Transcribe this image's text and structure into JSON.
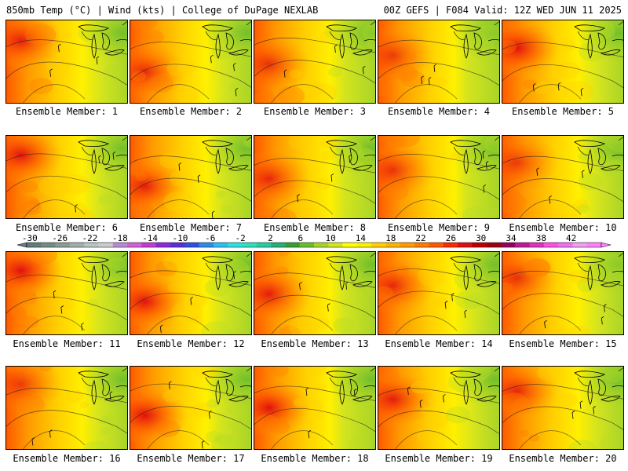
{
  "header": {
    "left_title": "850mb Temp (°C) | Wind (kts) | College of DuPage NEXLAB",
    "right_title": "00Z GEFS | F084 Valid: 12Z WED JUN 11 2025"
  },
  "members": [
    {
      "label": "Ensemble Member: 1"
    },
    {
      "label": "Ensemble Member: 2"
    },
    {
      "label": "Ensemble Member: 3"
    },
    {
      "label": "Ensemble Member: 4"
    },
    {
      "label": "Ensemble Member: 5"
    },
    {
      "label": "Ensemble Member: 6"
    },
    {
      "label": "Ensemble Member: 7"
    },
    {
      "label": "Ensemble Member: 8"
    },
    {
      "label": "Ensemble Member: 9"
    },
    {
      "label": "Ensemble Member: 10"
    },
    {
      "label": "Ensemble Member: 11"
    },
    {
      "label": "Ensemble Member: 12"
    },
    {
      "label": "Ensemble Member: 13"
    },
    {
      "label": "Ensemble Member: 14"
    },
    {
      "label": "Ensemble Member: 15"
    },
    {
      "label": "Ensemble Member: 16"
    },
    {
      "label": "Ensemble Member: 17"
    },
    {
      "label": "Ensemble Member: 18"
    },
    {
      "label": "Ensemble Member: 19"
    },
    {
      "label": "Ensemble Member: 20"
    }
  ],
  "colorbar": {
    "labels": [
      "-30",
      "-26",
      "-22",
      "-18",
      "-14",
      "-10",
      "-6",
      "-2",
      "2",
      "6",
      "10",
      "14",
      "18",
      "22",
      "26",
      "30",
      "34",
      "38",
      "42"
    ],
    "colors": [
      "#5f7f78",
      "#748c84",
      "#8a9d96",
      "#9fb0aa",
      "#b6c6c4",
      "#cccccc",
      "#b98ad4",
      "#d260d8",
      "#c23cd0",
      "#8c2cd8",
      "#5a30d8",
      "#3050e0",
      "#2e8ce8",
      "#2cc0f0",
      "#30e0e0",
      "#2ce0c0",
      "#28cca0",
      "#26b078",
      "#38a030",
      "#6cbc2c",
      "#a6d428",
      "#d4e41e",
      "#ffff00",
      "#fff000",
      "#ffd000",
      "#ffb400",
      "#ff9a00",
      "#ff7c00",
      "#ff5a00",
      "#ff2800",
      "#e01010",
      "#c00000",
      "#a00010",
      "#960060",
      "#c01898",
      "#e030c0",
      "#ff50e0",
      "#f070f0",
      "#f0a0f0",
      "#ff80ff"
    ]
  }
}
